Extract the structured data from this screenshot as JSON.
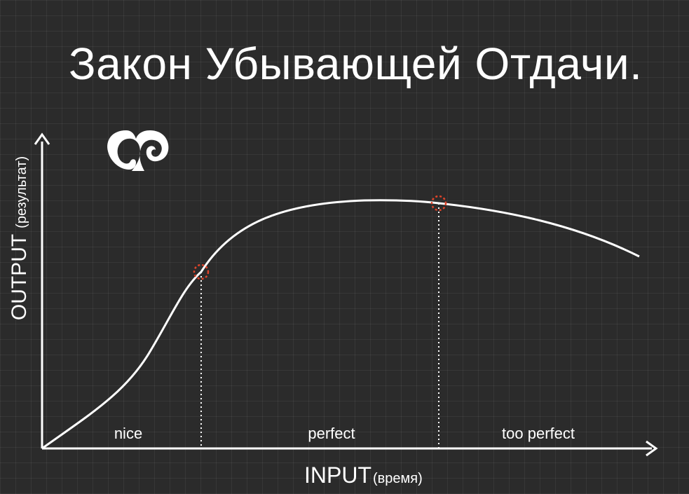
{
  "title": "Закон Убывающей Отдачи.",
  "axes": {
    "y_label_main": "OUTPUT",
    "y_label_sub": "(результат)",
    "x_label_main": "INPUT",
    "x_label_sub": "(время)"
  },
  "zones": [
    "nice",
    "perfect",
    "too perfect"
  ],
  "colors": {
    "background": "#2b2b2b",
    "line": "#ffffff",
    "marker": "#e0442a"
  }
}
